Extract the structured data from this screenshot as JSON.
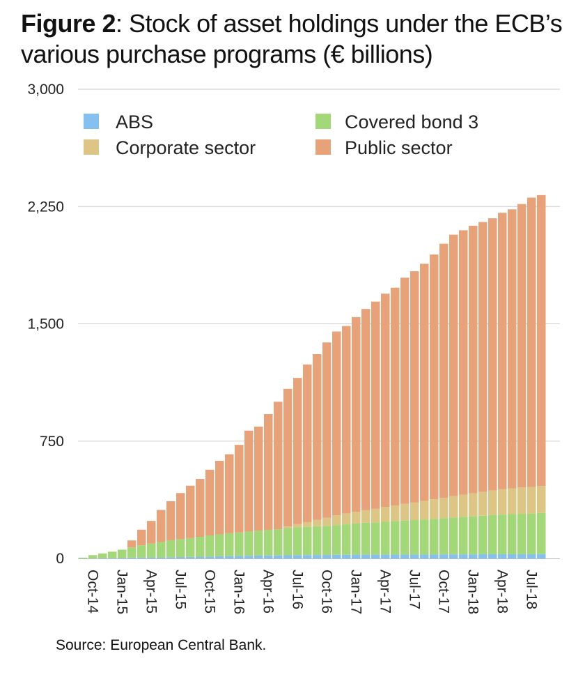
{
  "figure": {
    "label": "Figure 2",
    "title_rest": ": Stock of asset holdings under the ECB’s",
    "title_line2": "various purchase programs (€ billions)"
  },
  "source": "Source: European Central Bank.",
  "colors": {
    "abs": "#85c1f0",
    "covered": "#a3d878",
    "corporate": "#dcc585",
    "public": "#e8a27a",
    "grid": "#cccccc"
  },
  "chart_data": {
    "type": "bar",
    "stacked": true,
    "title": "Stock of asset holdings under the ECB’s various purchase programs (€ billions)",
    "ylim": [
      0,
      3000
    ],
    "yticks": [
      "0",
      "750",
      "1,500",
      "2,250",
      "3,000"
    ],
    "ytick_values": [
      0,
      750,
      1500,
      2250,
      3000
    ],
    "xtick_labels": [
      "Oct-14",
      "Jan-15",
      "Apr-15",
      "Jul-15",
      "Oct-15",
      "Jan-16",
      "Apr-16",
      "Jul-16",
      "Oct-16",
      "Jan-17",
      "Apr-17",
      "Jul-17",
      "Oct-17",
      "Jan-18",
      "Apr-18",
      "Jul-18"
    ],
    "legend": [
      {
        "name": "ABS",
        "color_key": "abs"
      },
      {
        "name": "Covered bond 3",
        "color_key": "covered"
      },
      {
        "name": "Corporate sector",
        "color_key": "corporate"
      },
      {
        "name": "Public sector",
        "color_key": "public"
      }
    ],
    "categories": [
      "Oct-14",
      "Nov-14",
      "Dec-14",
      "Jan-15",
      "Feb-15",
      "Mar-15",
      "Apr-15",
      "May-15",
      "Jun-15",
      "Jul-15",
      "Aug-15",
      "Sep-15",
      "Oct-15",
      "Nov-15",
      "Dec-15",
      "Jan-16",
      "Feb-16",
      "Mar-16",
      "Apr-16",
      "May-16",
      "Jun-16",
      "Jul-16",
      "Aug-16",
      "Sep-16",
      "Oct-16",
      "Nov-16",
      "Dec-16",
      "Jan-17",
      "Feb-17",
      "Mar-17",
      "Apr-17",
      "May-17",
      "Jun-17",
      "Jul-17",
      "Aug-17",
      "Sep-17",
      "Oct-17",
      "Nov-17",
      "Dec-17",
      "Jan-18",
      "Feb-18",
      "Mar-18",
      "Apr-18",
      "May-18",
      "Jun-18",
      "Jul-18",
      "Aug-18",
      "Sep-18"
    ],
    "series": [
      {
        "name": "ABS",
        "values": [
          0,
          1,
          2,
          3,
          4,
          5,
          6,
          7,
          7,
          8,
          9,
          10,
          11,
          12,
          14,
          15,
          16,
          17,
          18,
          19,
          19,
          20,
          21,
          21,
          22,
          22,
          23,
          23,
          24,
          24,
          24,
          24,
          25,
          25,
          25,
          25,
          25,
          26,
          26,
          26,
          26,
          27,
          27,
          27,
          27,
          27,
          27,
          28
        ]
      },
      {
        "name": "Covered bond 3",
        "values": [
          5,
          20,
          30,
          40,
          52,
          65,
          78,
          88,
          98,
          108,
          114,
          120,
          127,
          135,
          140,
          146,
          150,
          155,
          160,
          164,
          168,
          174,
          178,
          181,
          184,
          186,
          190,
          195,
          199,
          204,
          207,
          210,
          214,
          217,
          220,
          224,
          228,
          232,
          236,
          240,
          243,
          246,
          250,
          253,
          256,
          258,
          260,
          263
        ]
      },
      {
        "name": "Corporate sector",
        "values": [
          0,
          0,
          0,
          0,
          0,
          0,
          0,
          0,
          0,
          0,
          0,
          0,
          0,
          0,
          0,
          0,
          0,
          0,
          0,
          0,
          0,
          10,
          20,
          30,
          40,
          52,
          63,
          70,
          75,
          80,
          86,
          95,
          100,
          107,
          112,
          118,
          125,
          130,
          136,
          142,
          148,
          153,
          158,
          162,
          165,
          169,
          170,
          172
        ]
      },
      {
        "name": "Public sector",
        "values": [
          0,
          0,
          0,
          0,
          0,
          45,
          100,
          145,
          205,
          250,
          295,
          335,
          370,
          420,
          470,
          505,
          560,
          645,
          665,
          740,
          815,
          880,
          935,
          1008,
          1060,
          1121,
          1175,
          1198,
          1245,
          1287,
          1325,
          1364,
          1392,
          1446,
          1479,
          1517,
          1565,
          1624,
          1672,
          1690,
          1710,
          1725,
          1740,
          1768,
          1784,
          1812,
          1850,
          1860
        ]
      }
    ]
  }
}
